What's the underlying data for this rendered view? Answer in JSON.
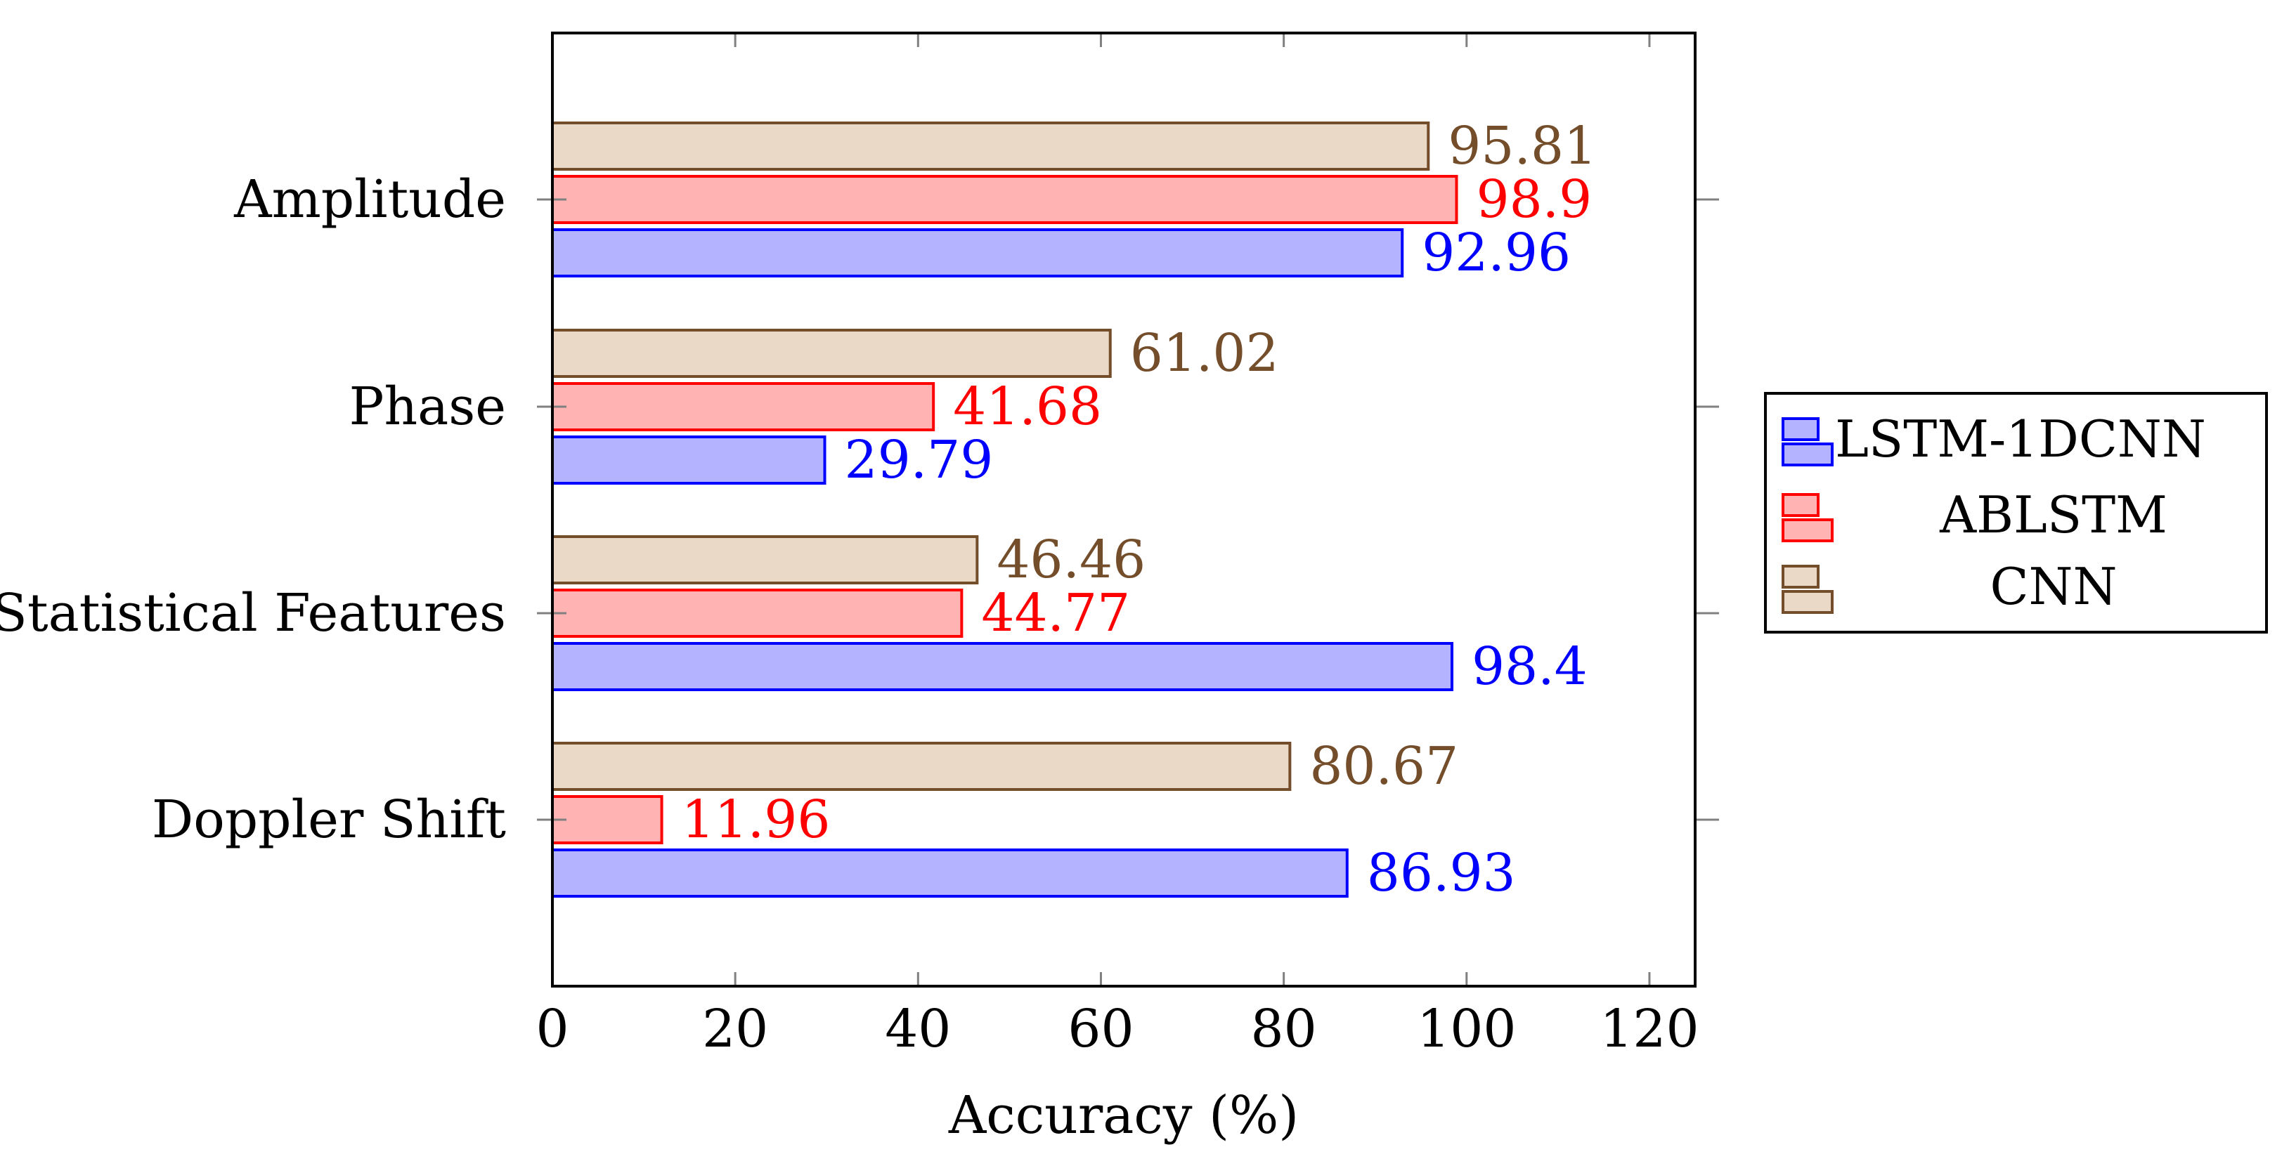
{
  "chart_data": {
    "type": "bar",
    "orientation": "horizontal",
    "categories": [
      "Amplitude",
      "Phase",
      "Statistical Features",
      "Doppler Shift"
    ],
    "series": [
      {
        "name": "LSTM-1DCNN",
        "values": [
          92.96,
          29.79,
          98.4,
          86.93
        ],
        "stroke": "#0000ff",
        "fill": "#b3b3ff",
        "label_color": "#0000ff"
      },
      {
        "name": "ABLSTM",
        "values": [
          98.9,
          41.68,
          44.77,
          11.96
        ],
        "stroke": "#ff0000",
        "fill": "#ffb3b3",
        "label_color": "#ff0000"
      },
      {
        "name": "CNN",
        "values": [
          95.81,
          61.02,
          46.46,
          80.67
        ],
        "stroke": "#744e2b",
        "fill": "#ead9c6",
        "label_color": "#744e2b"
      }
    ],
    "value_labels": [
      [
        "92.96",
        "29.79",
        "98.4",
        "86.93"
      ],
      [
        "98.9",
        "41.68",
        "44.77",
        "11.96"
      ],
      [
        "95.81",
        "61.02",
        "46.46",
        "80.67"
      ]
    ],
    "xlabel": "Accuracy (%)",
    "ylabel": "",
    "xlim": [
      0,
      125
    ],
    "xticks": [
      0,
      20,
      40,
      60,
      80,
      100,
      120
    ],
    "xtick_labels": [
      "0",
      "20",
      "40",
      "60",
      "80",
      "100",
      "120"
    ],
    "legend_position": "outside-right",
    "grid": false
  }
}
